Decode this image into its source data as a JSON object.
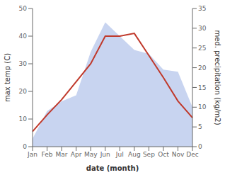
{
  "chart_data": {
    "type": "line",
    "categories": [
      "Jan",
      "Feb",
      "Mar",
      "Apr",
      "May",
      "Jun",
      "Jul",
      "Aug",
      "Sep",
      "Oct",
      "Nov",
      "Dec"
    ],
    "xlabel": "date (month)",
    "ylabel": "max temp (C)",
    "y2label": "med. precipitation (kg/m2)",
    "ylim": [
      0,
      50
    ],
    "yticks": [
      0,
      10,
      20,
      30,
      40,
      50
    ],
    "y2lim": [
      0,
      35
    ],
    "y2ticks": [
      0,
      5,
      10,
      15,
      20,
      25,
      30,
      35
    ],
    "grid": false,
    "series": [
      {
        "type": "area",
        "axis": "y2",
        "color": "#c8d4f0",
        "values": [
          2.0,
          9.0,
          11.5,
          13.0,
          24.0,
          31.5,
          28.0,
          24.5,
          23.5,
          19.5,
          19.0,
          10.0
        ]
      },
      {
        "type": "line",
        "color": "#c0392b",
        "values": [
          5.5,
          11.5,
          17.0,
          23.5,
          30.0,
          40.0,
          40.0,
          41.0,
          33.0,
          25.0,
          16.5,
          10.5
        ]
      }
    ]
  }
}
